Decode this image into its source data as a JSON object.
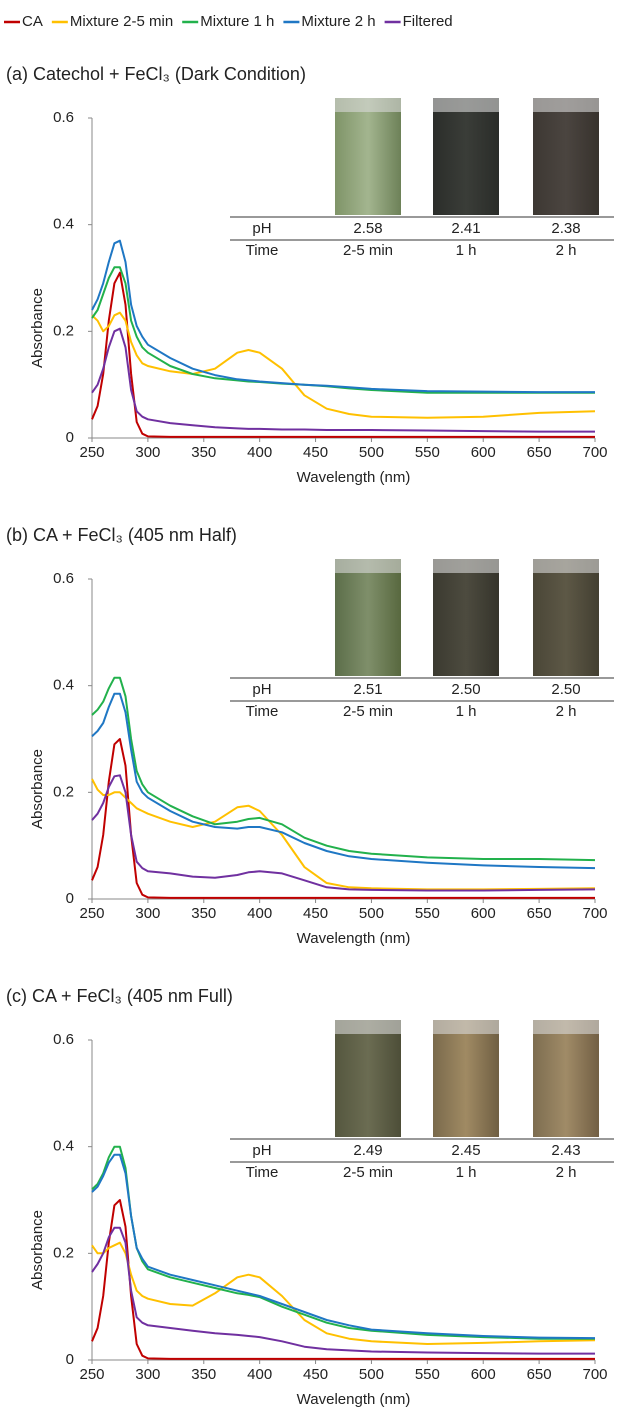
{
  "chart_data": [
    {
      "type": "line",
      "title": "(a) Catechol + FeCl₃ (Dark Condition)",
      "xlabel": "Wavelength (nm)",
      "ylabel": "Absorbance",
      "xlim": [
        250,
        700
      ],
      "xticks": [
        250,
        300,
        350,
        400,
        450,
        500,
        550,
        600,
        650,
        700
      ],
      "ylim": [
        0,
        0.6
      ],
      "yticks": [
        0,
        0.2,
        0.4,
        0.6
      ],
      "legend": "top",
      "x": [
        250,
        255,
        260,
        265,
        270,
        275,
        280,
        285,
        290,
        295,
        300,
        320,
        340,
        360,
        380,
        390,
        400,
        420,
        440,
        460,
        480,
        500,
        550,
        600,
        650,
        700
      ],
      "series": [
        {
          "name": "CA",
          "color": "#c00000",
          "values": [
            0.035,
            0.06,
            0.12,
            0.22,
            0.29,
            0.31,
            0.25,
            0.12,
            0.03,
            0.008,
            0.003,
            0.002,
            0.002,
            0.002,
            0.002,
            0.002,
            0.002,
            0.002,
            0.002,
            0.002,
            0.002,
            0.002,
            0.002,
            0.002,
            0.002,
            0.002
          ]
        },
        {
          "name": "Mixture 2-5 min",
          "color": "#ffc000",
          "values": [
            0.23,
            0.22,
            0.2,
            0.21,
            0.23,
            0.235,
            0.22,
            0.18,
            0.155,
            0.14,
            0.135,
            0.125,
            0.12,
            0.13,
            0.16,
            0.165,
            0.16,
            0.13,
            0.08,
            0.055,
            0.045,
            0.04,
            0.038,
            0.04,
            0.047,
            0.05
          ]
        },
        {
          "name": "Mixture 1 h",
          "color": "#22b14c",
          "values": [
            0.225,
            0.24,
            0.27,
            0.3,
            0.32,
            0.32,
            0.29,
            0.22,
            0.19,
            0.17,
            0.16,
            0.135,
            0.12,
            0.112,
            0.108,
            0.106,
            0.105,
            0.102,
            0.1,
            0.097,
            0.093,
            0.09,
            0.085,
            0.085,
            0.085,
            0.085
          ]
        },
        {
          "name": "Mixture 2 h",
          "color": "#1f77c4",
          "values": [
            0.24,
            0.26,
            0.29,
            0.33,
            0.365,
            0.37,
            0.33,
            0.25,
            0.21,
            0.19,
            0.175,
            0.15,
            0.13,
            0.118,
            0.11,
            0.108,
            0.106,
            0.103,
            0.1,
            0.098,
            0.095,
            0.092,
            0.088,
            0.087,
            0.086,
            0.086
          ]
        },
        {
          "name": "Filtered",
          "color": "#7030a0",
          "values": [
            0.085,
            0.1,
            0.13,
            0.17,
            0.2,
            0.205,
            0.17,
            0.09,
            0.05,
            0.04,
            0.035,
            0.028,
            0.024,
            0.02,
            0.018,
            0.017,
            0.017,
            0.016,
            0.016,
            0.015,
            0.015,
            0.015,
            0.014,
            0.013,
            0.012,
            0.012
          ]
        }
      ],
      "inset_table": {
        "rows": [
          [
            "pH",
            "2.58",
            "2.41",
            "2.38"
          ],
          [
            "Time",
            "2-5 min",
            "1 h",
            "2 h"
          ]
        ]
      }
    },
    {
      "type": "line",
      "title": "(b) CA + FeCl₃ (405 nm Half)",
      "xlabel": "Wavelength (nm)",
      "ylabel": "Absorbance",
      "xlim": [
        250,
        700
      ],
      "xticks": [
        250,
        300,
        350,
        400,
        450,
        500,
        550,
        600,
        650,
        700
      ],
      "ylim": [
        0,
        0.6
      ],
      "yticks": [
        0,
        0.2,
        0.4,
        0.6
      ],
      "x": [
        250,
        255,
        260,
        265,
        270,
        275,
        280,
        285,
        290,
        295,
        300,
        320,
        340,
        360,
        380,
        390,
        400,
        420,
        440,
        460,
        480,
        500,
        550,
        600,
        650,
        700
      ],
      "series": [
        {
          "color": "#c00000",
          "values": [
            0.035,
            0.06,
            0.12,
            0.22,
            0.29,
            0.3,
            0.25,
            0.12,
            0.03,
            0.008,
            0.003,
            0.002,
            0.002,
            0.002,
            0.002,
            0.002,
            0.002,
            0.002,
            0.002,
            0.002,
            0.002,
            0.002,
            0.002,
            0.002,
            0.002,
            0.002
          ]
        },
        {
          "color": "#ffc000",
          "values": [
            0.225,
            0.205,
            0.195,
            0.195,
            0.2,
            0.2,
            0.19,
            0.18,
            0.17,
            0.165,
            0.16,
            0.145,
            0.135,
            0.145,
            0.172,
            0.175,
            0.165,
            0.12,
            0.06,
            0.03,
            0.022,
            0.02,
            0.018,
            0.018,
            0.019,
            0.02
          ]
        },
        {
          "color": "#22b14c",
          "values": [
            0.345,
            0.355,
            0.37,
            0.395,
            0.415,
            0.415,
            0.38,
            0.3,
            0.24,
            0.215,
            0.2,
            0.175,
            0.155,
            0.14,
            0.145,
            0.15,
            0.152,
            0.14,
            0.115,
            0.1,
            0.09,
            0.085,
            0.078,
            0.075,
            0.075,
            0.073
          ]
        },
        {
          "color": "#1f77c4",
          "values": [
            0.305,
            0.315,
            0.33,
            0.36,
            0.385,
            0.385,
            0.35,
            0.28,
            0.22,
            0.2,
            0.19,
            0.165,
            0.145,
            0.135,
            0.132,
            0.135,
            0.135,
            0.125,
            0.105,
            0.09,
            0.08,
            0.075,
            0.068,
            0.063,
            0.06,
            0.058
          ]
        },
        {
          "color": "#7030a0",
          "values": [
            0.148,
            0.16,
            0.18,
            0.21,
            0.23,
            0.232,
            0.2,
            0.12,
            0.07,
            0.058,
            0.052,
            0.048,
            0.042,
            0.04,
            0.045,
            0.05,
            0.052,
            0.048,
            0.035,
            0.022,
            0.018,
            0.017,
            0.016,
            0.016,
            0.017,
            0.018
          ]
        }
      ],
      "inset_table": {
        "rows": [
          [
            "pH",
            "2.51",
            "2.50",
            "2.50"
          ],
          [
            "Time",
            "2-5 min",
            "1 h",
            "2 h"
          ]
        ]
      }
    },
    {
      "type": "line",
      "title": "(c) CA + FeCl₃ (405 nm Full)",
      "xlabel": "Wavelength (nm)",
      "ylabel": "Absorbance",
      "xlim": [
        250,
        700
      ],
      "xticks": [
        250,
        300,
        350,
        400,
        450,
        500,
        550,
        600,
        650,
        700
      ],
      "ylim": [
        0,
        0.6
      ],
      "yticks": [
        0,
        0.2,
        0.4,
        0.6
      ],
      "x": [
        250,
        255,
        260,
        265,
        270,
        275,
        280,
        285,
        290,
        295,
        300,
        320,
        340,
        360,
        380,
        390,
        400,
        420,
        440,
        460,
        480,
        500,
        550,
        600,
        650,
        700
      ],
      "series": [
        {
          "color": "#c00000",
          "values": [
            0.035,
            0.06,
            0.12,
            0.22,
            0.29,
            0.3,
            0.25,
            0.12,
            0.03,
            0.008,
            0.003,
            0.002,
            0.002,
            0.002,
            0.002,
            0.002,
            0.002,
            0.002,
            0.002,
            0.002,
            0.002,
            0.002,
            0.002,
            0.002,
            0.002,
            0.002
          ]
        },
        {
          "color": "#ffc000",
          "values": [
            0.215,
            0.2,
            0.2,
            0.21,
            0.215,
            0.22,
            0.2,
            0.16,
            0.13,
            0.12,
            0.115,
            0.105,
            0.102,
            0.125,
            0.155,
            0.16,
            0.155,
            0.12,
            0.075,
            0.05,
            0.04,
            0.035,
            0.03,
            0.032,
            0.035,
            0.037
          ]
        },
        {
          "color": "#22b14c",
          "values": [
            0.32,
            0.33,
            0.35,
            0.38,
            0.4,
            0.4,
            0.36,
            0.27,
            0.21,
            0.185,
            0.17,
            0.155,
            0.145,
            0.135,
            0.125,
            0.122,
            0.118,
            0.1,
            0.085,
            0.07,
            0.06,
            0.055,
            0.047,
            0.043,
            0.04,
            0.04
          ]
        },
        {
          "color": "#1f77c4",
          "values": [
            0.315,
            0.325,
            0.345,
            0.37,
            0.385,
            0.385,
            0.35,
            0.27,
            0.21,
            0.19,
            0.175,
            0.16,
            0.15,
            0.14,
            0.13,
            0.125,
            0.12,
            0.105,
            0.09,
            0.075,
            0.065,
            0.057,
            0.05,
            0.045,
            0.042,
            0.041
          ]
        },
        {
          "color": "#7030a0",
          "values": [
            0.165,
            0.18,
            0.2,
            0.23,
            0.248,
            0.248,
            0.22,
            0.13,
            0.08,
            0.07,
            0.065,
            0.06,
            0.055,
            0.05,
            0.047,
            0.045,
            0.043,
            0.035,
            0.025,
            0.02,
            0.018,
            0.016,
            0.014,
            0.013,
            0.012,
            0.012
          ]
        }
      ],
      "inset_table": {
        "rows": [
          [
            "pH",
            "2.49",
            "2.45",
            "2.43"
          ],
          [
            "Time",
            "2-5 min",
            "1 h",
            "2 h"
          ]
        ]
      }
    }
  ]
}
